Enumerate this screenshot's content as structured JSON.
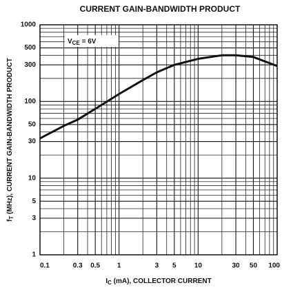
{
  "chart_data": {
    "type": "line",
    "title": "CURRENT GAIN-BANDWIDTH PRODUCT",
    "x_label": {
      "base": "I",
      "sub": "C",
      "rest": " (mA), COLLECTOR CURRENT"
    },
    "y_label": {
      "base": "f",
      "sub": "T",
      "rest": " (MHz), CURRENT GAIN-BANDWIDTH PRODUCT"
    },
    "annotation": {
      "base": "V",
      "sub": "CE",
      "rest": " = 6V"
    },
    "x": [
      0.1,
      0.2,
      0.3,
      0.5,
      1,
      2,
      3,
      5,
      10,
      20,
      30,
      50,
      100
    ],
    "values": [
      33,
      48,
      58,
      80,
      125,
      190,
      240,
      300,
      360,
      400,
      400,
      380,
      290
    ],
    "color": "#111111",
    "xscale": "log",
    "yscale": "log",
    "grid": true,
    "xlim": [
      0.1,
      100
    ],
    "ylim": [
      1,
      1000
    ],
    "xticks": [
      0.1,
      0.3,
      0.5,
      1,
      3,
      5,
      10,
      30,
      50,
      100
    ],
    "yticks": [
      1,
      3,
      5,
      10,
      30,
      50,
      100,
      300,
      500,
      1000
    ],
    "xminor_ticks": [
      0.2,
      0.4,
      0.6,
      0.7,
      0.8,
      0.9,
      2,
      4,
      6,
      7,
      8,
      9,
      20,
      40,
      60,
      70,
      80,
      90
    ],
    "yminor_ticks": [
      2,
      4,
      6,
      7,
      8,
      9,
      20,
      40,
      60,
      70,
      80,
      90,
      200,
      400,
      600,
      700,
      800,
      900
    ]
  }
}
